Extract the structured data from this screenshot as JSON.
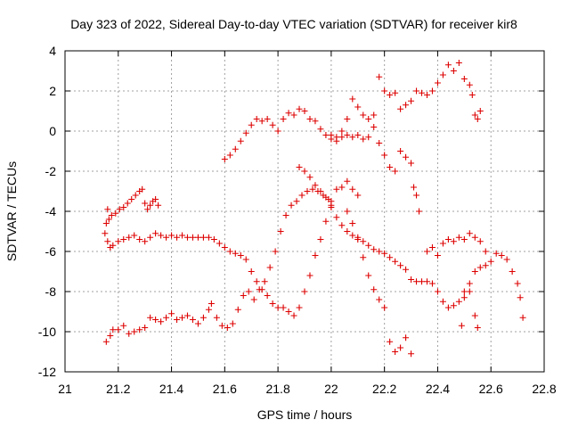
{
  "chart_data": {
    "type": "scatter",
    "title": "Day 323 of 2022, Sidereal Day-to-day VTEC variation (SDTVAR) for receiver kir8",
    "xlabel": "GPS time / hours",
    "ylabel": "SDTVAR / TECUs",
    "xlim": [
      21,
      22.8
    ],
    "ylim": [
      -12,
      4
    ],
    "xticks": [
      "21",
      "21.2",
      "21.4",
      "21.6",
      "21.8",
      "22",
      "22.2",
      "22.4",
      "22.6",
      "22.8"
    ],
    "yticks": [
      "-12",
      "-10",
      "-8",
      "-6",
      "-4",
      "-2",
      "0",
      "2",
      "4"
    ],
    "grid": true,
    "marker": "+",
    "color": "#dd0000",
    "series": [
      {
        "name": "track-upper-left",
        "points": [
          [
            21.155,
            -4.6
          ],
          [
            21.165,
            -4.4
          ],
          [
            21.175,
            -4.2
          ],
          [
            21.19,
            -4.1
          ],
          [
            21.205,
            -3.9
          ],
          [
            21.22,
            -3.8
          ],
          [
            21.235,
            -3.6
          ],
          [
            21.25,
            -3.4
          ],
          [
            21.265,
            -3.2
          ],
          [
            21.28,
            -3.0
          ],
          [
            21.29,
            -2.9
          ],
          [
            21.3,
            -3.6
          ],
          [
            21.31,
            -3.9
          ],
          [
            21.32,
            -3.7
          ],
          [
            21.33,
            -3.5
          ],
          [
            21.34,
            -3.4
          ],
          [
            21.35,
            -3.7
          ],
          [
            21.16,
            -3.9
          ]
        ]
      },
      {
        "name": "track-middle-left",
        "points": [
          [
            21.15,
            -5.1
          ],
          [
            21.16,
            -5.5
          ],
          [
            21.17,
            -5.8
          ],
          [
            21.18,
            -5.7
          ],
          [
            21.2,
            -5.5
          ],
          [
            21.22,
            -5.4
          ],
          [
            21.24,
            -5.3
          ],
          [
            21.26,
            -5.2
          ],
          [
            21.28,
            -5.4
          ],
          [
            21.3,
            -5.5
          ],
          [
            21.32,
            -5.3
          ],
          [
            21.34,
            -5.1
          ],
          [
            21.36,
            -5.2
          ],
          [
            21.38,
            -5.3
          ],
          [
            21.4,
            -5.2
          ],
          [
            21.42,
            -5.3
          ],
          [
            21.44,
            -5.2
          ],
          [
            21.46,
            -5.3
          ],
          [
            21.48,
            -5.3
          ],
          [
            21.5,
            -5.3
          ],
          [
            21.52,
            -5.3
          ],
          [
            21.54,
            -5.3
          ],
          [
            21.56,
            -5.4
          ],
          [
            21.58,
            -5.6
          ],
          [
            21.6,
            -5.8
          ],
          [
            21.62,
            -6.0
          ],
          [
            21.64,
            -6.1
          ],
          [
            21.66,
            -6.2
          ],
          [
            21.68,
            -6.4
          ],
          [
            21.7,
            -7.0
          ],
          [
            21.72,
            -7.5
          ],
          [
            21.74,
            -7.9
          ],
          [
            21.76,
            -8.2
          ],
          [
            21.78,
            -8.6
          ],
          [
            21.8,
            -8.8
          ],
          [
            21.82,
            -8.8
          ],
          [
            21.84,
            -9.0
          ],
          [
            21.86,
            -9.2
          ],
          [
            21.88,
            -8.8
          ],
          [
            21.9,
            -8.0
          ],
          [
            21.92,
            -7.2
          ],
          [
            21.94,
            -6.2
          ],
          [
            21.96,
            -5.4
          ],
          [
            21.98,
            -4.5
          ],
          [
            22.0,
            -3.5
          ],
          [
            22.02,
            -2.9
          ],
          [
            22.04,
            -2.8
          ],
          [
            22.06,
            -2.5
          ],
          [
            22.08,
            -2.9
          ],
          [
            22.1,
            -3.2
          ]
        ]
      },
      {
        "name": "track-lower-left",
        "points": [
          [
            21.155,
            -10.5
          ],
          [
            21.17,
            -10.2
          ],
          [
            21.18,
            -9.9
          ],
          [
            21.2,
            -9.9
          ],
          [
            21.22,
            -9.7
          ],
          [
            21.24,
            -10.1
          ],
          [
            21.26,
            -10.0
          ],
          [
            21.28,
            -9.9
          ],
          [
            21.3,
            -9.8
          ],
          [
            21.32,
            -9.3
          ],
          [
            21.34,
            -9.4
          ],
          [
            21.36,
            -9.5
          ],
          [
            21.38,
            -9.3
          ],
          [
            21.4,
            -9.1
          ],
          [
            21.42,
            -9.4
          ],
          [
            21.44,
            -9.3
          ],
          [
            21.46,
            -9.2
          ],
          [
            21.48,
            -9.4
          ],
          [
            21.5,
            -9.6
          ],
          [
            21.52,
            -9.3
          ],
          [
            21.54,
            -8.9
          ],
          [
            21.55,
            -8.6
          ],
          [
            21.57,
            -9.3
          ],
          [
            21.59,
            -9.7
          ],
          [
            21.61,
            -9.8
          ],
          [
            21.63,
            -9.6
          ],
          [
            21.65,
            -8.9
          ],
          [
            21.67,
            -8.2
          ],
          [
            21.69,
            -8.0
          ],
          [
            21.71,
            -8.4
          ],
          [
            21.73,
            -7.9
          ],
          [
            21.75,
            -7.5
          ],
          [
            21.77,
            -6.8
          ],
          [
            21.79,
            -6.0
          ],
          [
            21.81,
            -5.0
          ],
          [
            21.83,
            -4.2
          ],
          [
            21.85,
            -3.7
          ],
          [
            21.87,
            -3.5
          ],
          [
            21.89,
            -3.2
          ],
          [
            21.91,
            -3.0
          ],
          [
            21.93,
            -2.9
          ],
          [
            21.95,
            -3.0
          ],
          [
            21.97,
            -3.2
          ],
          [
            21.99,
            -3.4
          ],
          [
            22.0,
            -3.7
          ]
        ]
      },
      {
        "name": "track-upper-right",
        "points": [
          [
            21.6,
            -1.4
          ],
          [
            21.62,
            -1.2
          ],
          [
            21.64,
            -0.9
          ],
          [
            21.66,
            -0.5
          ],
          [
            21.68,
            -0.1
          ],
          [
            21.7,
            0.3
          ],
          [
            21.72,
            0.6
          ],
          [
            21.74,
            0.5
          ],
          [
            21.76,
            0.6
          ],
          [
            21.78,
            0.3
          ],
          [
            21.8,
            0.0
          ],
          [
            21.82,
            0.6
          ],
          [
            21.84,
            0.9
          ],
          [
            21.86,
            0.8
          ],
          [
            21.88,
            1.1
          ],
          [
            21.9,
            1.0
          ],
          [
            21.92,
            0.6
          ],
          [
            21.94,
            0.5
          ],
          [
            21.96,
            0.1
          ],
          [
            21.98,
            -0.2
          ],
          [
            22.0,
            -0.2
          ],
          [
            22.02,
            -0.3
          ],
          [
            22.04,
            0.0
          ],
          [
            22.06,
            0.6
          ],
          [
            22.08,
            1.6
          ],
          [
            22.1,
            1.2
          ],
          [
            22.12,
            0.8
          ],
          [
            22.14,
            0.6
          ],
          [
            22.16,
            0.8
          ],
          [
            22.18,
            2.7
          ],
          [
            22.2,
            2.0
          ],
          [
            22.22,
            1.8
          ],
          [
            22.24,
            1.9
          ],
          [
            22.26,
            1.1
          ],
          [
            22.28,
            1.3
          ],
          [
            22.3,
            1.5
          ],
          [
            22.32,
            2.0
          ],
          [
            22.34,
            1.9
          ],
          [
            22.36,
            1.8
          ],
          [
            22.38,
            2.0
          ],
          [
            22.4,
            2.4
          ],
          [
            22.42,
            2.8
          ],
          [
            22.44,
            3.3
          ],
          [
            22.46,
            3.0
          ],
          [
            22.48,
            3.4
          ],
          [
            22.5,
            2.6
          ],
          [
            22.52,
            2.3
          ],
          [
            22.53,
            1.8
          ],
          [
            22.54,
            0.8
          ],
          [
            22.55,
            0.6
          ],
          [
            22.56,
            1.0
          ]
        ]
      },
      {
        "name": "track-middle-right",
        "points": [
          [
            22.0,
            -0.4
          ],
          [
            22.02,
            -0.5
          ],
          [
            22.04,
            -0.3
          ],
          [
            22.06,
            -0.2
          ],
          [
            22.08,
            -0.3
          ],
          [
            22.1,
            -0.2
          ],
          [
            22.12,
            -0.4
          ],
          [
            22.14,
            -0.3
          ],
          [
            22.16,
            0.2
          ],
          [
            22.18,
            -0.6
          ],
          [
            22.2,
            -1.2
          ],
          [
            22.22,
            -1.8
          ],
          [
            22.24,
            -2.0
          ],
          [
            22.26,
            -1.0
          ],
          [
            22.28,
            -1.3
          ],
          [
            22.3,
            -1.6
          ],
          [
            22.31,
            -2.8
          ],
          [
            22.32,
            -3.2
          ],
          [
            22.33,
            -4.0
          ]
        ]
      },
      {
        "name": "track-cross-down",
        "points": [
          [
            21.88,
            -1.8
          ],
          [
            21.9,
            -2.0
          ],
          [
            21.92,
            -2.3
          ],
          [
            21.94,
            -2.7
          ],
          [
            21.96,
            -3.0
          ],
          [
            21.98,
            -3.3
          ],
          [
            22.0,
            -3.8
          ],
          [
            22.02,
            -4.3
          ],
          [
            22.04,
            -4.7
          ],
          [
            22.06,
            -5.0
          ],
          [
            22.08,
            -5.2
          ],
          [
            22.1,
            -5.3
          ],
          [
            22.12,
            -5.5
          ],
          [
            22.14,
            -5.7
          ],
          [
            22.16,
            -5.9
          ],
          [
            22.18,
            -6.0
          ],
          [
            22.2,
            -6.1
          ],
          [
            22.22,
            -6.3
          ],
          [
            22.24,
            -6.5
          ],
          [
            22.26,
            -6.7
          ],
          [
            22.28,
            -6.9
          ],
          [
            22.3,
            -7.4
          ],
          [
            22.32,
            -7.5
          ],
          [
            22.34,
            -7.5
          ],
          [
            22.36,
            -7.5
          ],
          [
            22.38,
            -7.6
          ],
          [
            22.4,
            -8.0
          ],
          [
            22.42,
            -8.5
          ],
          [
            22.44,
            -8.8
          ],
          [
            22.46,
            -8.7
          ],
          [
            22.48,
            -8.5
          ],
          [
            22.5,
            -8.0
          ],
          [
            22.52,
            -7.6
          ],
          [
            22.54,
            -7.0
          ],
          [
            22.56,
            -6.8
          ],
          [
            22.58,
            -6.7
          ],
          [
            22.6,
            -6.5
          ],
          [
            22.62,
            -6.1
          ],
          [
            22.64,
            -6.2
          ],
          [
            22.66,
            -6.4
          ],
          [
            22.68,
            -7.0
          ],
          [
            22.7,
            -7.6
          ],
          [
            22.71,
            -8.3
          ],
          [
            22.72,
            -9.3
          ]
        ]
      },
      {
        "name": "track-right-cluster",
        "points": [
          [
            22.36,
            -6.0
          ],
          [
            22.38,
            -5.8
          ],
          [
            22.4,
            -6.2
          ],
          [
            22.42,
            -5.6
          ],
          [
            22.44,
            -5.4
          ],
          [
            22.46,
            -5.5
          ],
          [
            22.48,
            -5.3
          ],
          [
            22.5,
            -5.4
          ],
          [
            22.52,
            -5.1
          ],
          [
            22.54,
            -5.3
          ],
          [
            22.56,
            -5.5
          ],
          [
            22.58,
            -6.0
          ],
          [
            22.5,
            -8.3
          ],
          [
            22.52,
            -8.0
          ],
          [
            22.54,
            -9.2
          ],
          [
            22.55,
            -9.8
          ],
          [
            22.49,
            -9.7
          ]
        ]
      },
      {
        "name": "track-drop",
        "points": [
          [
            22.06,
            -4.0
          ],
          [
            22.08,
            -4.6
          ],
          [
            22.1,
            -5.4
          ],
          [
            22.12,
            -6.3
          ],
          [
            22.14,
            -7.2
          ],
          [
            22.16,
            -7.9
          ],
          [
            22.18,
            -8.4
          ],
          [
            22.2,
            -8.8
          ],
          [
            22.22,
            -10.5
          ],
          [
            22.24,
            -11.0
          ],
          [
            22.26,
            -10.8
          ],
          [
            22.28,
            -10.3
          ],
          [
            22.3,
            -11.1
          ]
        ]
      }
    ]
  }
}
